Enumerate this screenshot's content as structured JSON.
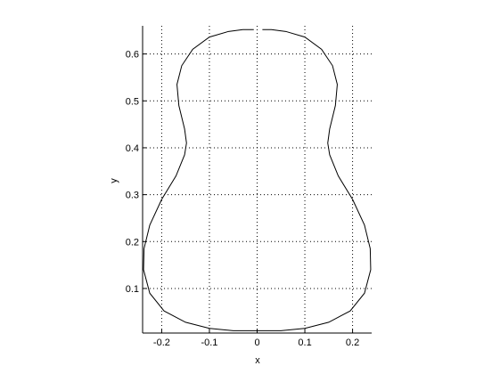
{
  "chart_data": {
    "type": "line",
    "title": "",
    "xlabel": "x",
    "ylabel": "y",
    "xlim": [
      -0.24,
      0.24
    ],
    "ylim": [
      0.005,
      0.66
    ],
    "grid": true,
    "legend": "none",
    "x_ticks": [
      -0.2,
      -0.1,
      0,
      0.1,
      0.2
    ],
    "x_tick_labels": [
      "-0.2",
      "-0.1",
      "0",
      "0.1",
      "0.2"
    ],
    "y_ticks": [
      0.1,
      0.2,
      0.3,
      0.4,
      0.5,
      0.6
    ],
    "y_tick_labels": [
      "0.1",
      "0.2",
      "0.3",
      "0.4",
      "0.5",
      "0.6"
    ],
    "series": [
      {
        "color": "#000000",
        "points": [
          [
            -0.007,
            0.652
          ],
          [
            -0.03,
            0.652
          ],
          [
            -0.06,
            0.648
          ],
          [
            -0.1,
            0.636
          ],
          [
            -0.135,
            0.61
          ],
          [
            -0.158,
            0.575
          ],
          [
            -0.168,
            0.535
          ],
          [
            -0.164,
            0.49
          ],
          [
            -0.152,
            0.44
          ],
          [
            -0.148,
            0.41
          ],
          [
            -0.152,
            0.385
          ],
          [
            -0.17,
            0.34
          ],
          [
            -0.2,
            0.29
          ],
          [
            -0.225,
            0.235
          ],
          [
            -0.237,
            0.185
          ],
          [
            -0.238,
            0.14
          ],
          [
            -0.225,
            0.09
          ],
          [
            -0.195,
            0.052
          ],
          [
            -0.15,
            0.028
          ],
          [
            -0.1,
            0.015
          ],
          [
            -0.05,
            0.01
          ],
          [
            0.0,
            0.01
          ],
          [
            0.05,
            0.01
          ],
          [
            0.1,
            0.015
          ],
          [
            0.15,
            0.028
          ],
          [
            0.195,
            0.052
          ],
          [
            0.225,
            0.09
          ],
          [
            0.238,
            0.14
          ],
          [
            0.237,
            0.185
          ],
          [
            0.225,
            0.235
          ],
          [
            0.2,
            0.29
          ],
          [
            0.17,
            0.34
          ],
          [
            0.152,
            0.385
          ],
          [
            0.148,
            0.41
          ],
          [
            0.152,
            0.44
          ],
          [
            0.164,
            0.49
          ],
          [
            0.168,
            0.535
          ],
          [
            0.158,
            0.575
          ],
          [
            0.135,
            0.61
          ],
          [
            0.1,
            0.636
          ],
          [
            0.06,
            0.648
          ],
          [
            0.03,
            0.652
          ],
          [
            0.011,
            0.652
          ]
        ]
      }
    ]
  }
}
